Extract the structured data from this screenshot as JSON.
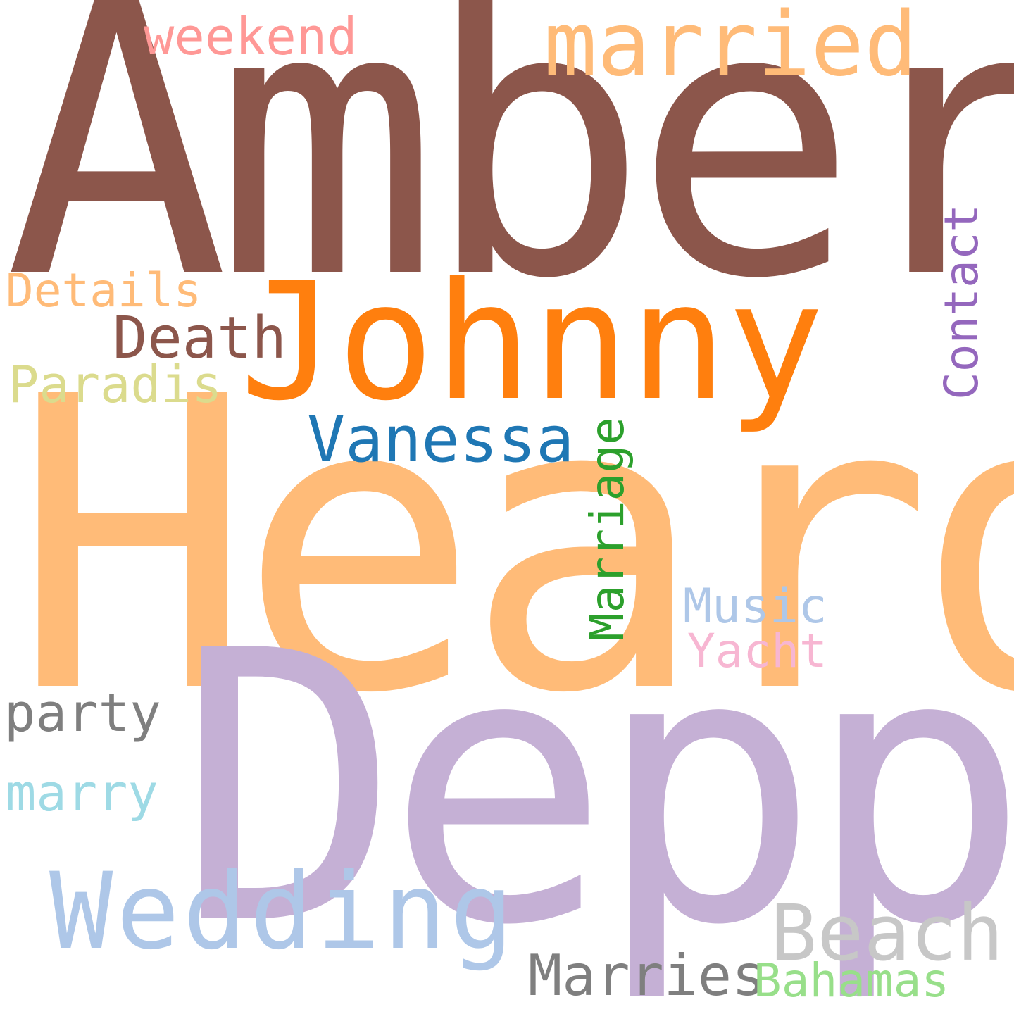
{
  "words": [
    {
      "id": "amber",
      "text": "Amber",
      "color": "#8c564b"
    },
    {
      "id": "heard",
      "text": "Heard",
      "color": "#ffbb78"
    },
    {
      "id": "depp",
      "text": "Depp",
      "color": "#c5b0d5"
    },
    {
      "id": "johnny",
      "text": "Johnny",
      "color": "#ff7f0e"
    },
    {
      "id": "married",
      "text": "married",
      "color": "#ffbb78"
    },
    {
      "id": "weekend",
      "text": "weekend",
      "color": "#ff9896"
    },
    {
      "id": "wedding",
      "text": "Wedding",
      "color": "#aec7e8"
    },
    {
      "id": "vanessa",
      "text": "Vanessa",
      "color": "#1f77b4"
    },
    {
      "id": "marriage",
      "text": "Marriage",
      "color": "#2ca02c"
    },
    {
      "id": "contact",
      "text": "Contact",
      "color": "#9467bd"
    },
    {
      "id": "details",
      "text": "Details",
      "color": "#ffbb78"
    },
    {
      "id": "death",
      "text": "Death",
      "color": "#8c564b"
    },
    {
      "id": "paradis",
      "text": "Paradis",
      "color": "#dbdb8d"
    },
    {
      "id": "music",
      "text": "Music",
      "color": "#aec7e8"
    },
    {
      "id": "yacht",
      "text": "Yacht",
      "color": "#f7b6d2"
    },
    {
      "id": "party",
      "text": "party",
      "color": "#7f7f7f"
    },
    {
      "id": "marry",
      "text": "marry",
      "color": "#9edae5"
    },
    {
      "id": "beach",
      "text": "Beach",
      "color": "#c7c7c7"
    },
    {
      "id": "marries",
      "text": "Marries",
      "color": "#7f7f7f"
    },
    {
      "id": "bahamas",
      "text": "Bahamas",
      "color": "#98df8a"
    }
  ]
}
